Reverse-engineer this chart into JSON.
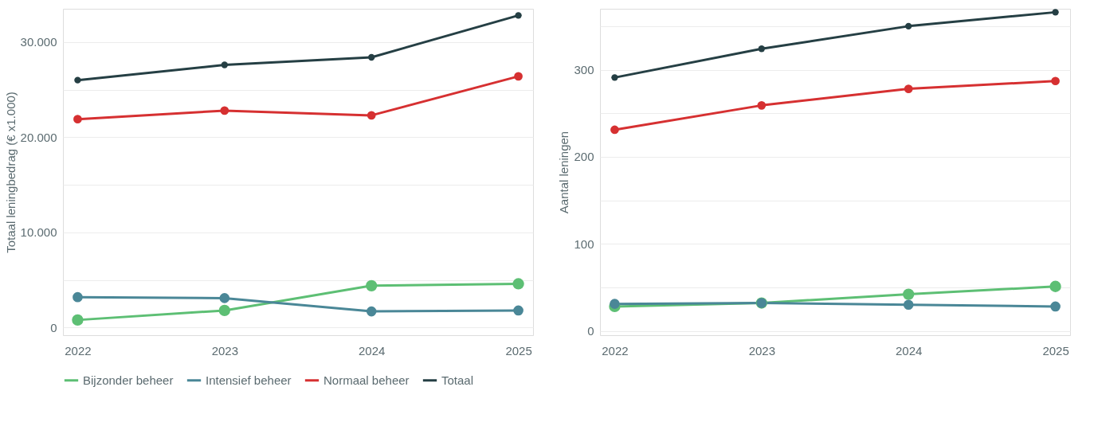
{
  "chart_data": [
    {
      "type": "line",
      "ylabel": "Totaal leningbedrag (€ x1.000)",
      "categories": [
        "2022",
        "2023",
        "2024",
        "2025"
      ],
      "series": [
        {
          "name": "Bijzonder beheer",
          "color": "#5dbf74",
          "values": [
            800,
            1800,
            4400,
            4600
          ]
        },
        {
          "name": "Intensief beheer",
          "color": "#4a8797",
          "values": [
            3200,
            3100,
            1700,
            1800
          ]
        },
        {
          "name": "Normaal beheer",
          "color": "#d63031",
          "values": [
            21900,
            22800,
            22300,
            26400
          ]
        },
        {
          "name": "Totaal",
          "color": "#253f44",
          "values": [
            26000,
            27600,
            28400,
            32800
          ]
        }
      ],
      "ylim": [
        -800,
        33500
      ],
      "yticks": [
        {
          "value": 0,
          "label": "0"
        },
        {
          "value": 5000,
          "label": null
        },
        {
          "value": 10000,
          "label": "10.000"
        },
        {
          "value": 15000,
          "label": null
        },
        {
          "value": 20000,
          "label": "20.000"
        },
        {
          "value": 25000,
          "label": null
        },
        {
          "value": 30000,
          "label": "30.000"
        }
      ],
      "grid": "y",
      "marker": "circle",
      "legend": "bottom"
    },
    {
      "type": "line",
      "ylabel": "Aantal leningen",
      "categories": [
        "2022",
        "2023",
        "2024",
        "2025"
      ],
      "series": [
        {
          "name": "Bijzonder beheer",
          "color": "#5dbf74",
          "values": [
            28,
            32,
            42,
            51
          ]
        },
        {
          "name": "Intensief beheer",
          "color": "#4a8797",
          "values": [
            31,
            32,
            30,
            28
          ]
        },
        {
          "name": "Normaal beheer",
          "color": "#d63031",
          "values": [
            231,
            259,
            278,
            287
          ]
        },
        {
          "name": "Totaal",
          "color": "#253f44",
          "values": [
            291,
            324,
            350,
            366
          ]
        }
      ],
      "ylim": [
        -5,
        370
      ],
      "yticks": [
        0,
        {
          "value": 50,
          "label": null
        },
        100,
        {
          "value": 150,
          "label": null
        },
        200,
        {
          "value": 250,
          "label": null
        },
        300,
        {
          "value": 350,
          "label": null
        }
      ],
      "grid": "y",
      "marker": "circle",
      "legend": "bottom"
    }
  ]
}
